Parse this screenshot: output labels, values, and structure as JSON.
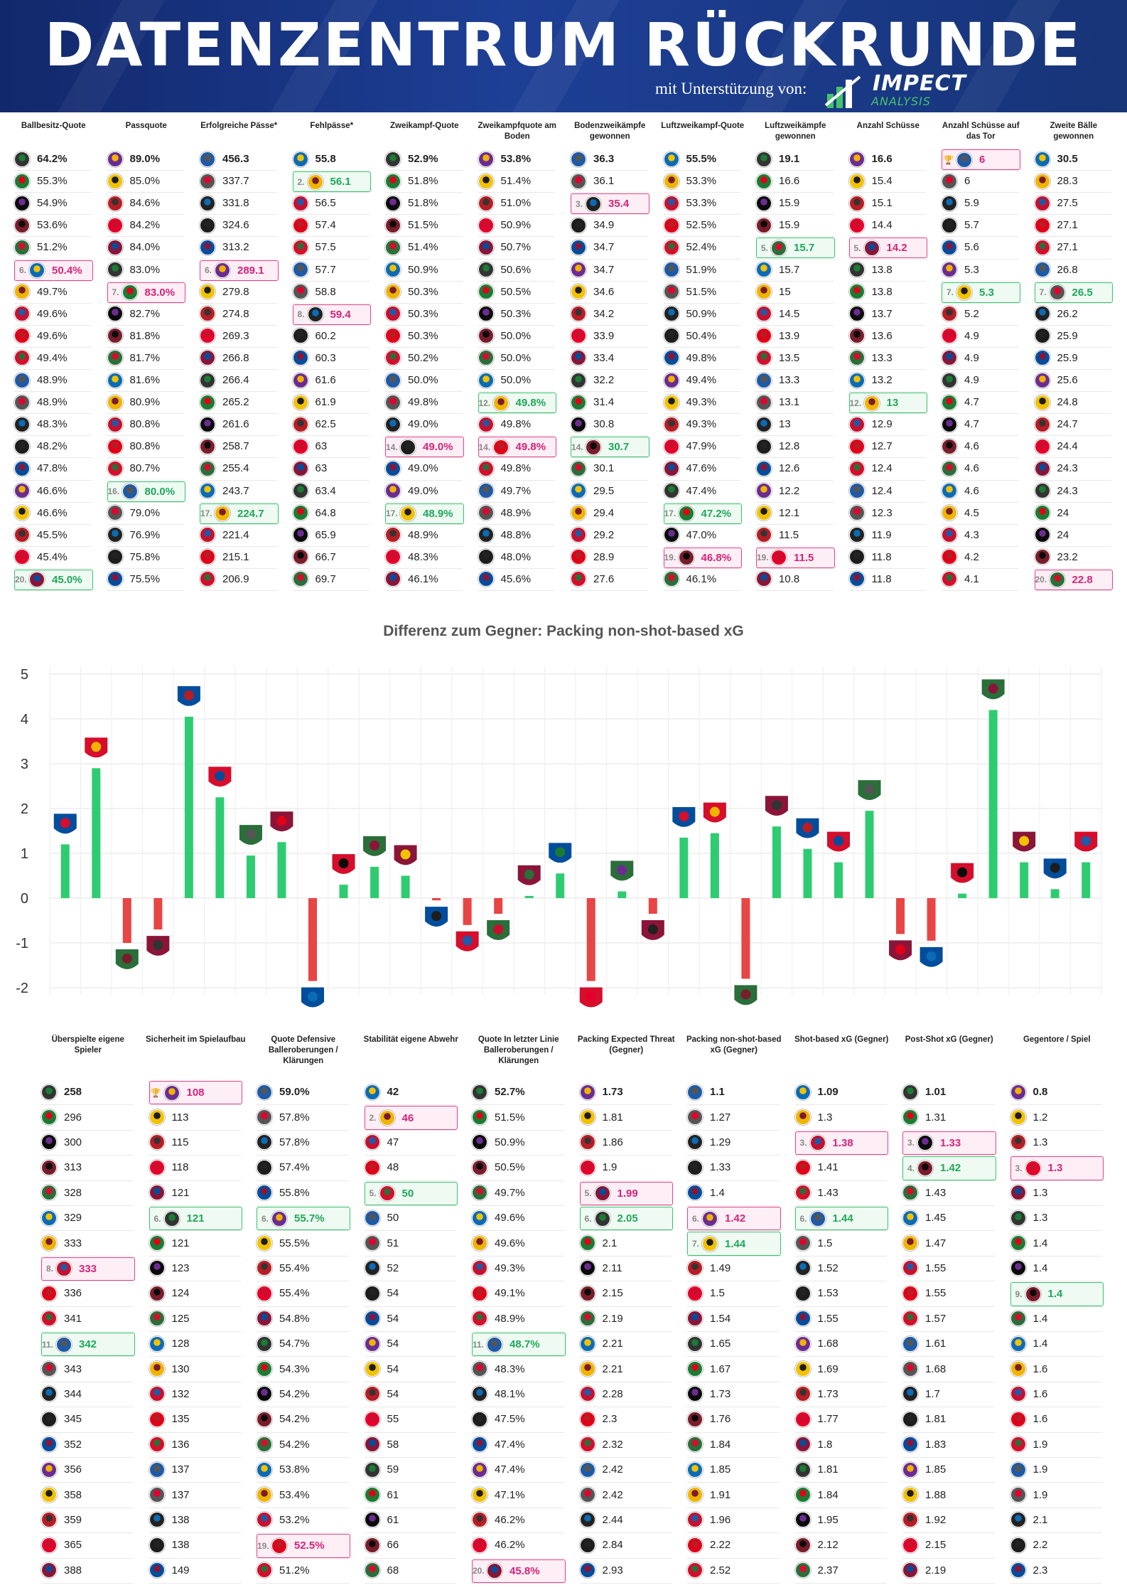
{
  "banner": {
    "title": "DATENZENTRUM RÜCKRUNDE",
    "support": "mit Unterstützung von:",
    "logo_main": "IMPECT",
    "logo_sub": "ANALYSIS"
  },
  "colors": {
    "green": "#35c46c",
    "pink": "#e4418a",
    "bar_pos": "#2ecc71",
    "bar_neg": "#e84545"
  },
  "top_table": {
    "columns": [
      {
        "header": "Ballbesitz-Quote",
        "values": [
          "64.2%",
          "55.3%",
          "54.9%",
          "53.6%",
          "51.2%",
          "50.4%",
          "49.7%",
          "49.6%",
          "49.6%",
          "49.4%",
          "48.9%",
          "48.9%",
          "48.3%",
          "48.2%",
          "47.8%",
          "46.6%",
          "46.6%",
          "45.5%",
          "45.4%",
          "45.0%"
        ],
        "hi": [
          [
            5,
            "p",
            "6."
          ],
          [
            19,
            "g",
            "20."
          ]
        ]
      },
      {
        "header": "Passquote",
        "values": [
          "89.0%",
          "85.0%",
          "84.6%",
          "84.2%",
          "84.0%",
          "83.0%",
          "83.0%",
          "82.7%",
          "81.8%",
          "81.7%",
          "81.6%",
          "80.9%",
          "80.8%",
          "80.8%",
          "80.7%",
          "80.0%",
          "79.0%",
          "76.9%",
          "75.8%",
          "75.5%"
        ],
        "hi": [
          [
            6,
            "p",
            "7."
          ],
          [
            15,
            "g",
            "16."
          ]
        ]
      },
      {
        "header": "Erfolgreiche Pässe*",
        "values": [
          "456.3",
          "337.7",
          "331.8",
          "324.6",
          "313.2",
          "289.1",
          "279.8",
          "274.8",
          "269.3",
          "266.8",
          "266.4",
          "265.2",
          "261.6",
          "258.7",
          "255.4",
          "243.7",
          "224.7",
          "221.4",
          "215.1",
          "206.9"
        ],
        "hi": [
          [
            5,
            "p",
            "6."
          ],
          [
            16,
            "g",
            "17."
          ]
        ]
      },
      {
        "header": "Fehlpässe*",
        "values": [
          "55.8",
          "56.1",
          "56.5",
          "57.4",
          "57.5",
          "57.7",
          "58.8",
          "59.4",
          "60.2",
          "60.3",
          "61.6",
          "61.9",
          "62.5",
          "63",
          "63",
          "63.4",
          "64.8",
          "65.9",
          "66.7",
          "69.7"
        ],
        "hi": [
          [
            1,
            "g",
            "2."
          ],
          [
            7,
            "p",
            "8."
          ]
        ]
      },
      {
        "header": "Zweikampf-Quote",
        "values": [
          "52.9%",
          "51.8%",
          "51.8%",
          "51.5%",
          "51.4%",
          "50.9%",
          "50.3%",
          "50.3%",
          "50.3%",
          "50.2%",
          "50.0%",
          "49.8%",
          "49.0%",
          "49.0%",
          "49.0%",
          "49.0%",
          "48.9%",
          "48.9%",
          "48.3%",
          "46.1%"
        ],
        "hi": [
          [
            13,
            "p",
            "14."
          ],
          [
            16,
            "g",
            "17."
          ]
        ]
      },
      {
        "header": "Zweikampfquote am Boden",
        "values": [
          "53.8%",
          "51.4%",
          "51.0%",
          "50.9%",
          "50.7%",
          "50.6%",
          "50.5%",
          "50.3%",
          "50.0%",
          "50.0%",
          "50.0%",
          "49.8%",
          "49.8%",
          "49.8%",
          "49.8%",
          "49.7%",
          "48.9%",
          "48.8%",
          "48.0%",
          "45.6%"
        ],
        "hi": [
          [
            11,
            "g",
            "12."
          ],
          [
            13,
            "p",
            "14."
          ]
        ]
      },
      {
        "header": "Bodenzweikämpfe gewonnen",
        "values": [
          "36.3",
          "36.1",
          "35.4",
          "34.9",
          "34.7",
          "34.7",
          "34.6",
          "34.2",
          "33.9",
          "33.4",
          "32.2",
          "31.4",
          "30.8",
          "30.7",
          "30.1",
          "29.5",
          "29.4",
          "29.2",
          "28.9",
          "27.6"
        ],
        "hi": [
          [
            2,
            "p",
            "3."
          ],
          [
            13,
            "g",
            "14."
          ]
        ]
      },
      {
        "header": "Luftzweikampf-Quote",
        "values": [
          "55.5%",
          "53.3%",
          "53.3%",
          "52.5%",
          "52.4%",
          "51.9%",
          "51.5%",
          "50.9%",
          "50.4%",
          "49.8%",
          "49.4%",
          "49.3%",
          "49.3%",
          "47.9%",
          "47.6%",
          "47.4%",
          "47.2%",
          "47.0%",
          "46.8%",
          "46.1%"
        ],
        "hi": [
          [
            16,
            "g",
            "17."
          ],
          [
            18,
            "p",
            "19."
          ]
        ]
      },
      {
        "header": "Luftzweikämpfe gewonnen",
        "values": [
          "19.1",
          "16.6",
          "15.9",
          "15.9",
          "15.7",
          "15.7",
          "15",
          "14.5",
          "13.9",
          "13.5",
          "13.3",
          "13.1",
          "13",
          "12.8",
          "12.6",
          "12.2",
          "12.1",
          "11.5",
          "11.5",
          "10.8"
        ],
        "hi": [
          [
            4,
            "g",
            "5."
          ],
          [
            18,
            "p",
            "19."
          ]
        ]
      },
      {
        "header": "Anzahl Schüsse",
        "values": [
          "16.6",
          "15.4",
          "15.1",
          "14.4",
          "14.2",
          "13.8",
          "13.8",
          "13.7",
          "13.6",
          "13.3",
          "13.2",
          "13",
          "12.9",
          "12.7",
          "12.4",
          "12.4",
          "12.3",
          "11.9",
          "11.8",
          "11.8"
        ],
        "hi": [
          [
            4,
            "p",
            "5."
          ],
          [
            11,
            "g",
            "12."
          ]
        ]
      },
      {
        "header": "Anzahl Schüsse auf das Tor",
        "values": [
          "6",
          "6",
          "5.9",
          "5.7",
          "5.6",
          "5.3",
          "5.3",
          "5.2",
          "4.9",
          "4.9",
          "4.9",
          "4.7",
          "4.7",
          "4.6",
          "4.6",
          "4.6",
          "4.5",
          "4.3",
          "4.2",
          "4.1"
        ],
        "hi": [
          [
            0,
            "p",
            "🏆"
          ],
          [
            6,
            "g",
            "7."
          ]
        ]
      },
      {
        "header": "Zweite Bälle gewonnen",
        "values": [
          "30.5",
          "28.3",
          "27.5",
          "27.1",
          "27.1",
          "26.8",
          "26.5",
          "26.2",
          "25.9",
          "25.9",
          "25.6",
          "24.8",
          "24.7",
          "24.4",
          "24.3",
          "24.3",
          "24",
          "24",
          "23.2",
          "22.8"
        ],
        "hi": [
          [
            6,
            "g",
            "7."
          ],
          [
            19,
            "p",
            "20."
          ]
        ]
      }
    ]
  },
  "chart_data": {
    "type": "bar",
    "title": "Differenz zum Gegner: Packing non-shot-based xG",
    "ylim": [
      -2,
      5
    ],
    "yticks": [
      "-2",
      "-1",
      "0",
      "1",
      "2",
      "3",
      "4",
      "5"
    ],
    "values": [
      1.2,
      2.9,
      -1.0,
      -0.7,
      4.05,
      2.25,
      0.95,
      1.25,
      -1.85,
      0.3,
      0.7,
      0.5,
      -0.05,
      -0.6,
      -0.35,
      0.05,
      0.55,
      -1.85,
      0.15,
      -0.35,
      1.35,
      1.45,
      -1.8,
      1.6,
      1.1,
      0.8,
      1.95,
      -0.8,
      -0.95,
      0.1,
      4.2,
      0.8,
      0.2,
      0.8
    ],
    "grid": true
  },
  "bottom_table": {
    "columns": [
      {
        "header": "Überspielte eigene Spieler",
        "values": [
          "258",
          "296",
          "300",
          "313",
          "328",
          "329",
          "333",
          "333",
          "336",
          "341",
          "342",
          "343",
          "344",
          "345",
          "352",
          "356",
          "358",
          "359",
          "365",
          "388"
        ],
        "hi": [
          [
            7,
            "p",
            "8."
          ],
          [
            10,
            "g",
            "11."
          ]
        ]
      },
      {
        "header": "Sicherheit im Spielaufbau",
        "values": [
          "108",
          "113",
          "115",
          "118",
          "121",
          "121",
          "121",
          "123",
          "124",
          "125",
          "128",
          "130",
          "132",
          "135",
          "136",
          "137",
          "137",
          "138",
          "138",
          "149"
        ],
        "hi": [
          [
            0,
            "p",
            "🏆"
          ],
          [
            5,
            "g",
            "6."
          ]
        ]
      },
      {
        "header": "Quote Defensive Balleroberungen / Klärungen",
        "values": [
          "59.0%",
          "57.8%",
          "57.8%",
          "57.4%",
          "55.8%",
          "55.7%",
          "55.5%",
          "55.4%",
          "55.4%",
          "54.8%",
          "54.7%",
          "54.3%",
          "54.2%",
          "54.2%",
          "54.2%",
          "53.8%",
          "53.4%",
          "53.2%",
          "52.5%",
          "51.2%"
        ],
        "hi": [
          [
            5,
            "g",
            "6."
          ],
          [
            18,
            "p",
            "19."
          ]
        ]
      },
      {
        "header": "Stabilität eigene Abwehr",
        "values": [
          "42",
          "46",
          "47",
          "48",
          "50",
          "50",
          "51",
          "52",
          "54",
          "54",
          "54",
          "54",
          "54",
          "55",
          "58",
          "59",
          "61",
          "61",
          "66",
          "68"
        ],
        "hi": [
          [
            1,
            "p",
            "2."
          ],
          [
            4,
            "g",
            "5."
          ]
        ]
      },
      {
        "header": "Quote In letzter Linie Balleroberungen / Klärungen",
        "values": [
          "52.7%",
          "51.5%",
          "50.9%",
          "50.5%",
          "49.7%",
          "49.6%",
          "49.6%",
          "49.3%",
          "49.1%",
          "48.9%",
          "48.7%",
          "48.3%",
          "48.1%",
          "47.5%",
          "47.4%",
          "47.4%",
          "47.1%",
          "46.2%",
          "46.2%",
          "45.8%"
        ],
        "hi": [
          [
            10,
            "g",
            "11."
          ],
          [
            19,
            "p",
            "20."
          ]
        ]
      },
      {
        "header": "Packing Expected Threat (Gegner)",
        "values": [
          "1.73",
          "1.81",
          "1.86",
          "1.9",
          "1.99",
          "2.05",
          "2.1",
          "2.11",
          "2.15",
          "2.19",
          "2.21",
          "2.21",
          "2.28",
          "2.3",
          "2.32",
          "2.42",
          "2.42",
          "2.44",
          "2.84",
          "2.93"
        ],
        "hi": [
          [
            4,
            "p",
            "5."
          ],
          [
            5,
            "g",
            "6."
          ]
        ]
      },
      {
        "header": "Packing non-shot-based xG (Gegner)",
        "values": [
          "1.1",
          "1.27",
          "1.29",
          "1.33",
          "1.4",
          "1.42",
          "1.44",
          "1.49",
          "1.5",
          "1.54",
          "1.65",
          "1.67",
          "1.73",
          "1.76",
          "1.84",
          "1.85",
          "1.91",
          "1.96",
          "2.22",
          "2.52"
        ],
        "hi": [
          [
            5,
            "p",
            "6."
          ],
          [
            6,
            "g",
            "7."
          ]
        ]
      },
      {
        "header": "Shot-based xG (Gegner)",
        "values": [
          "1.09",
          "1.3",
          "1.38",
          "1.41",
          "1.43",
          "1.44",
          "1.5",
          "1.52",
          "1.53",
          "1.55",
          "1.68",
          "1.69",
          "1.73",
          "1.77",
          "1.8",
          "1.81",
          "1.84",
          "1.95",
          "2.12",
          "2.37"
        ],
        "hi": [
          [
            2,
            "p",
            "3."
          ],
          [
            5,
            "g",
            "6."
          ]
        ]
      },
      {
        "header": "Post-Shot xG (Gegner)",
        "values": [
          "1.01",
          "1.31",
          "1.33",
          "1.42",
          "1.43",
          "1.45",
          "1.47",
          "1.55",
          "1.55",
          "1.57",
          "1.61",
          "1.68",
          "1.7",
          "1.81",
          "1.83",
          "1.85",
          "1.88",
          "1.92",
          "2.15",
          "2.19"
        ],
        "hi": [
          [
            2,
            "p",
            "3."
          ],
          [
            3,
            "g",
            "4."
          ]
        ]
      },
      {
        "header": "Gegentore / Spiel",
        "values": [
          "0.8",
          "1.2",
          "1.3",
          "1.3",
          "1.3",
          "1.3",
          "1.4",
          "1.4",
          "1.4",
          "1.4",
          "1.4",
          "1.6",
          "1.6",
          "1.6",
          "1.9",
          "1.9",
          "1.9",
          "2.1",
          "2.2",
          "2.3"
        ],
        "hi": [
          [
            3,
            "p",
            "3."
          ],
          [
            8,
            "g",
            "9."
          ]
        ]
      }
    ]
  }
}
